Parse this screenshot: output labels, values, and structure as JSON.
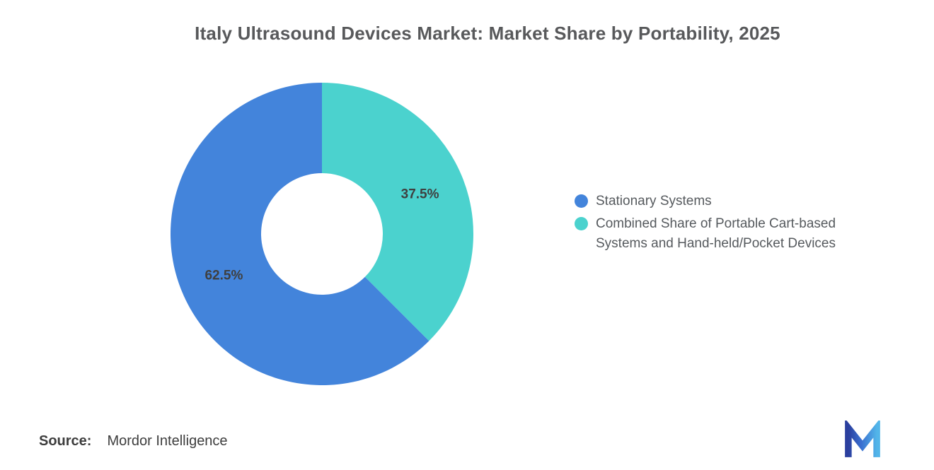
{
  "title": "Italy Ultrasound Devices Market: Market Share by Portability, 2025",
  "chart_data": {
    "type": "pie",
    "subtype": "donut",
    "title": "Italy Ultrasound Devices Market: Market Share by Portability, 2025",
    "unit": "%",
    "start_angle_deg": -90,
    "rotation": "clockwise-from-top, teal slice first",
    "legend_position": "right",
    "segments": [
      {
        "label": "Stationary Systems",
        "value": 62.5,
        "display": "62.5%",
        "color": "#4384db"
      },
      {
        "label": "Combined Share of Portable Cart-based Systems and Hand-held/Pocket Devices",
        "value": 37.5,
        "display": "37.5%",
        "color": "#4bd2ce"
      }
    ]
  },
  "source": {
    "label": "Source:",
    "value": "Mordor Intelligence"
  },
  "logo": {
    "name": "mordor-intelligence-logo",
    "color_dark": "#2b3f9e",
    "color_light": "#52b5e9"
  }
}
